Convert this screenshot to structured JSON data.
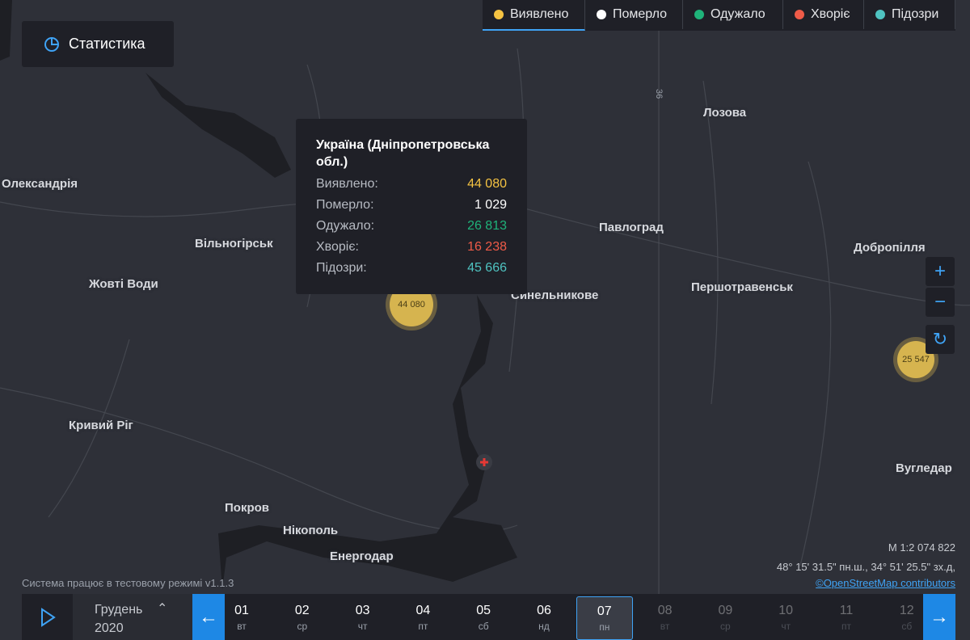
{
  "stats_button": "Статистика",
  "legend": [
    "Виявлено",
    "Померло",
    "Одужало",
    "Хворіє",
    "Підозри"
  ],
  "tooltip": {
    "title": "Україна (Дніпропетровська обл.)",
    "rows": [
      [
        "Виявлено:",
        "44 080"
      ],
      [
        "Померло:",
        "1 029"
      ],
      [
        "Одужало:",
        "26 813"
      ],
      [
        "Хворіє:",
        "16 238"
      ],
      [
        "Підозри:",
        "45 666"
      ]
    ]
  },
  "clusters": [
    "44 080",
    "25 547"
  ],
  "places": [
    "Олександрія",
    "Вільногірськ",
    "Жовті Води",
    "Кривий Ріг",
    "Покров",
    "Нікополь",
    "Енергодар",
    "Синельникове",
    "Павлоград",
    "Лозова",
    "Першотравенськ",
    "Добропілля",
    "Вугледар"
  ],
  "road": "36",
  "scale": "М 1:2 074 822",
  "coords": "48° 15' 31.5\" пн.ш., 34° 51' 25.5\" зх.д,",
  "attribution": "©OpenStreetMap contributors",
  "status": "Система працює в тестовому режимі v1.1.3",
  "month": "Грудень",
  "year": "2020",
  "days": [
    [
      "01",
      "вт"
    ],
    [
      "02",
      "ср"
    ],
    [
      "03",
      "чт"
    ],
    [
      "04",
      "пт"
    ],
    [
      "05",
      "сб"
    ],
    [
      "06",
      "нд"
    ],
    [
      "07",
      "пн"
    ],
    [
      "08",
      "вт"
    ],
    [
      "09",
      "ср"
    ],
    [
      "10",
      "чт"
    ],
    [
      "11",
      "пт"
    ],
    [
      "12",
      "сб"
    ]
  ]
}
